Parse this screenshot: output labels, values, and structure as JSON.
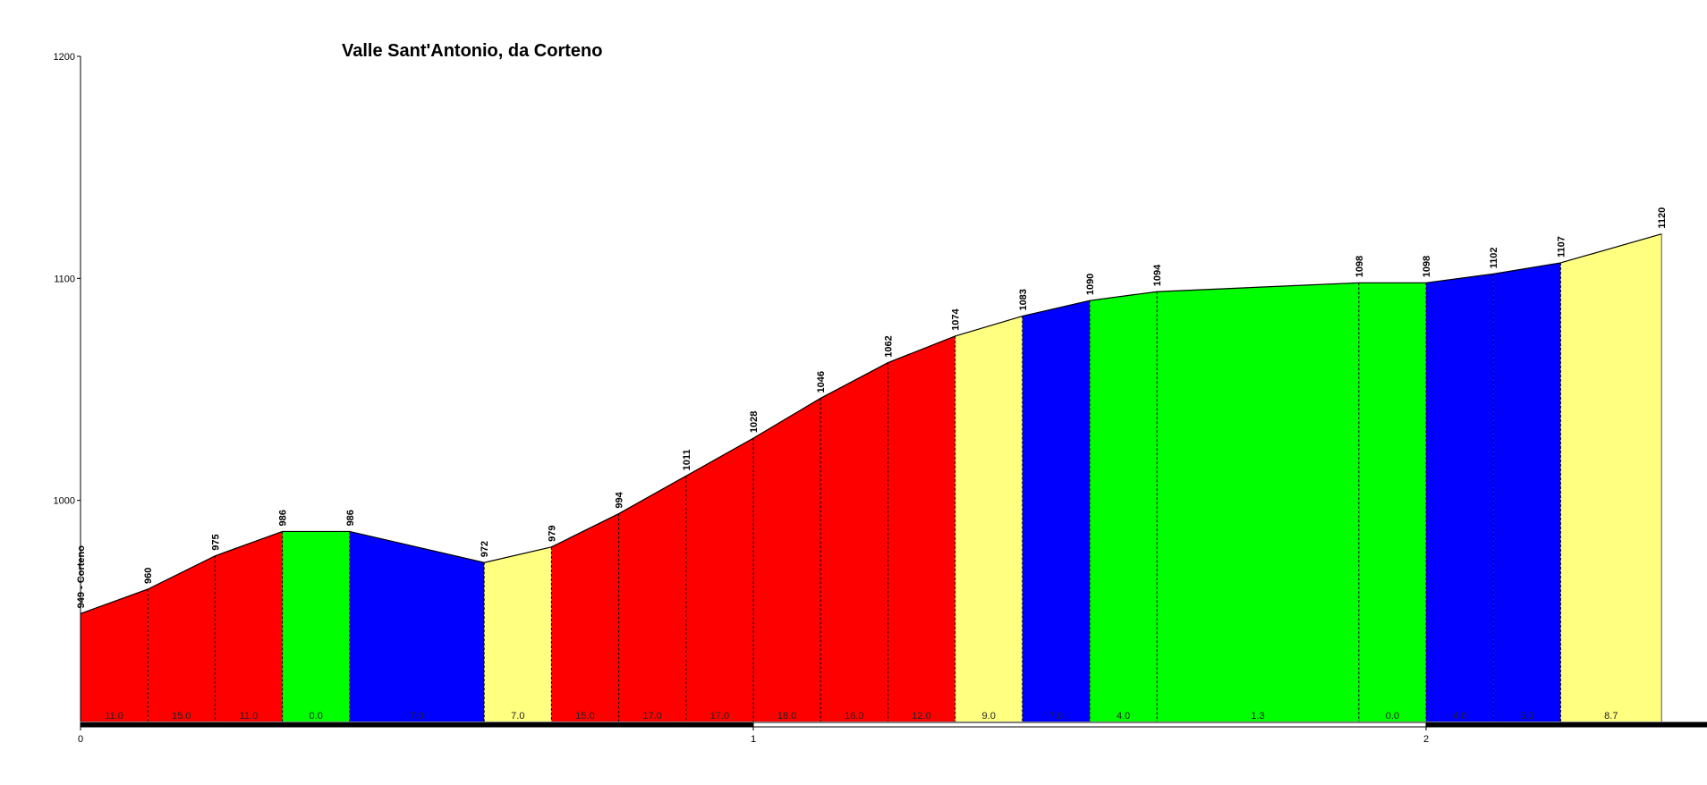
{
  "chart_data": {
    "type": "area",
    "title": "Valle Sant'Antonio, da Corteno",
    "xlabel": "",
    "ylabel": "",
    "xlim": [
      0,
      2.4
    ],
    "ylim": [
      900,
      1200
    ],
    "x_ticks": [
      0,
      1,
      2
    ],
    "x_tick_labels": [
      "0",
      "1",
      "2"
    ],
    "y_ticks": [
      1000,
      1100,
      1200
    ],
    "y_tick_labels": [
      "1000",
      "1100",
      "1200"
    ],
    "points": [
      {
        "x": 0.0,
        "y": 949,
        "label": "949 - Corteno"
      },
      {
        "x": 0.1,
        "y": 960,
        "label": "960"
      },
      {
        "x": 0.2,
        "y": 975,
        "label": "975"
      },
      {
        "x": 0.3,
        "y": 986,
        "label": "986"
      },
      {
        "x": 0.4,
        "y": 986,
        "label": "986"
      },
      {
        "x": 0.6,
        "y": 972,
        "label": "972"
      },
      {
        "x": 0.7,
        "y": 979,
        "label": "979"
      },
      {
        "x": 0.8,
        "y": 994,
        "label": "994"
      },
      {
        "x": 0.9,
        "y": 1011,
        "label": "1011"
      },
      {
        "x": 1.0,
        "y": 1028,
        "label": "1028"
      },
      {
        "x": 1.1,
        "y": 1046,
        "label": "1046"
      },
      {
        "x": 1.2,
        "y": 1062,
        "label": "1062"
      },
      {
        "x": 1.3,
        "y": 1074,
        "label": "1074"
      },
      {
        "x": 1.4,
        "y": 1083,
        "label": "1083"
      },
      {
        "x": 1.5,
        "y": 1090,
        "label": "1090"
      },
      {
        "x": 1.6,
        "y": 1094,
        "label": "1094"
      },
      {
        "x": 1.9,
        "y": 1098,
        "label": "1098"
      },
      {
        "x": 2.0,
        "y": 1098,
        "label": "1098"
      },
      {
        "x": 2.1,
        "y": 1102,
        "label": "1102"
      },
      {
        "x": 2.2,
        "y": 1107,
        "label": "1107"
      },
      {
        "x": 2.35,
        "y": 1120,
        "label": "1120"
      }
    ],
    "segments": [
      {
        "gradient": "11.0",
        "color": "#ff0000"
      },
      {
        "gradient": "15.0",
        "color": "#ff0000"
      },
      {
        "gradient": "11.0",
        "color": "#ff0000"
      },
      {
        "gradient": "0.0",
        "color": "#00ff00"
      },
      {
        "gradient": "7.0",
        "color": "#0000ff"
      },
      {
        "gradient": "7.0",
        "color": "#ffff80"
      },
      {
        "gradient": "15.0",
        "color": "#ff0000"
      },
      {
        "gradient": "17.0",
        "color": "#ff0000"
      },
      {
        "gradient": "17.0",
        "color": "#ff0000"
      },
      {
        "gradient": "18.0",
        "color": "#ff0000"
      },
      {
        "gradient": "16.0",
        "color": "#ff0000"
      },
      {
        "gradient": "12.0",
        "color": "#ff0000"
      },
      {
        "gradient": "9.0",
        "color": "#ffff80"
      },
      {
        "gradient": "7.0",
        "color": "#0000ff"
      },
      {
        "gradient": "4.0",
        "color": "#00ff00"
      },
      {
        "gradient": "1.3",
        "color": "#00ff00"
      },
      {
        "gradient": "0.0",
        "color": "#00ff00"
      },
      {
        "gradient": "4.0",
        "color": "#0000ff"
      },
      {
        "gradient": "5.0",
        "color": "#0000ff"
      },
      {
        "gradient": "8.7",
        "color": "#ffff80"
      }
    ],
    "grid": false,
    "legend": "none"
  }
}
